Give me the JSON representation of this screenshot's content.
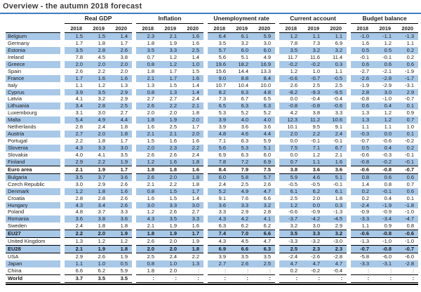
{
  "title": "Overview - the autumn 2018 forecast",
  "accent": {
    "title_rule_blue": "#3f7cc0",
    "row_highlight_blue": "#a8c8e8"
  },
  "table": {
    "years": [
      "2018",
      "2019",
      "2020"
    ],
    "column_groups": [
      "Real GDP",
      "Inflation",
      "Unemployment rate",
      "Current account",
      "Budget balance"
    ],
    "rows": [
      {
        "name": "Belgium",
        "highlight": true,
        "aggregate": false,
        "values": [
          "1.5",
          "1.5",
          "1.4",
          "2.3",
          "2.1",
          "1.6",
          "6.4",
          "6.1",
          "5.9",
          "1.2",
          "1.1",
          "1.1",
          "-1.0",
          "-1.1",
          "-1.3"
        ]
      },
      {
        "name": "Germany",
        "highlight": false,
        "aggregate": false,
        "values": [
          "1.7",
          "1.8",
          "1.7",
          "1.8",
          "1.9",
          "1.6",
          "3.5",
          "3.2",
          "3.0",
          "7.8",
          "7.3",
          "6.9",
          "1.6",
          "1.2",
          "1.1"
        ]
      },
      {
        "name": "Estonia",
        "highlight": true,
        "aggregate": false,
        "values": [
          "3.5",
          "2.8",
          "2.6",
          "3.5",
          "3.3",
          "2.5",
          "5.7",
          "6.0",
          "6.0",
          "3.5",
          "3.2",
          "3.2",
          "0.5",
          "0.5",
          "0.2"
        ]
      },
      {
        "name": "Ireland",
        "highlight": false,
        "aggregate": false,
        "values": [
          "7.8",
          "4.5",
          "3.8",
          "0.7",
          "1.2",
          "1.4",
          "5.6",
          "5.1",
          "4.9",
          "11.7",
          "11.6",
          "11.4",
          "-0.1",
          "-0.1",
          "0.2"
        ]
      },
      {
        "name": "Greece",
        "highlight": true,
        "aggregate": false,
        "values": [
          "2.0",
          "2.0",
          "2.0",
          "0.8",
          "1.2",
          "1.0",
          "19.6",
          "18.2",
          "16.9",
          "-0.2",
          "-0.2",
          "0.3",
          "0.6",
          "0.6",
          "0.6"
        ]
      },
      {
        "name": "Spain",
        "highlight": false,
        "aggregate": false,
        "values": [
          "2.6",
          "2.2",
          "2.0",
          "1.8",
          "1.7",
          "1.5",
          "15.6",
          "14.4",
          "13.3",
          "1.2",
          "1.0",
          "1.1",
          "-2.7",
          "-2.1",
          "-1.9"
        ]
      },
      {
        "name": "France",
        "highlight": true,
        "aggregate": false,
        "values": [
          "1.7",
          "1.6",
          "1.6",
          "2.1",
          "1.7",
          "1.6",
          "9.0",
          "8.8",
          "8.4",
          "-0.6",
          "-0.7",
          "-0.5",
          "-2.6",
          "-2.8",
          "-1.7"
        ]
      },
      {
        "name": "Italy",
        "highlight": false,
        "aggregate": false,
        "values": [
          "1.1",
          "1.2",
          "1.3",
          "1.3",
          "1.5",
          "1.4",
          "10.7",
          "10.4",
          "10.0",
          "2.6",
          "2.5",
          "2.5",
          "-1.9",
          "-2.9",
          "-3.1"
        ]
      },
      {
        "name": "Cyprus",
        "highlight": true,
        "aggregate": false,
        "values": [
          "3.9",
          "3.5",
          "2.9",
          "0.8",
          "1.3",
          "1.4",
          "8.2",
          "6.3",
          "4.8",
          "-8.2",
          "-9.3",
          "-9.5",
          "2.8",
          "3.0",
          "2.9"
        ]
      },
      {
        "name": "Latvia",
        "highlight": false,
        "aggregate": false,
        "values": [
          "4.1",
          "3.2",
          "2.9",
          "2.7",
          "2.7",
          "2.4",
          "7.3",
          "6.7",
          "6.5",
          "0.0",
          "-0.4",
          "-0.4",
          "-0.8",
          "-1.0",
          "-0.7"
        ]
      },
      {
        "name": "Lithuania",
        "highlight": true,
        "aggregate": false,
        "values": [
          "3.4",
          "2.8",
          "2.5",
          "2.6",
          "2.2",
          "2.1",
          "6.5",
          "6.3",
          "6.3",
          "-0.8",
          "-0.8",
          "-0.6",
          "0.6",
          "0.4",
          "0.1"
        ]
      },
      {
        "name": "Luxembourg",
        "highlight": false,
        "aggregate": false,
        "values": [
          "3.1",
          "3.0",
          "2.7",
          "2.0",
          "2.0",
          "1.8",
          "5.3",
          "5.2",
          "5.2",
          "4.2",
          "3.8",
          "3.3",
          "1.3",
          "1.2",
          "0.9"
        ]
      },
      {
        "name": "Malta",
        "highlight": true,
        "aggregate": false,
        "values": [
          "5.4",
          "4.9",
          "4.4",
          "1.8",
          "1.9",
          "2.0",
          "3.9",
          "4.0",
          "4.0",
          "12.3",
          "11.2",
          "10.6",
          "1.3",
          "1.2",
          "0.7"
        ]
      },
      {
        "name": "Netherlands",
        "highlight": false,
        "aggregate": false,
        "values": [
          "2.8",
          "2.4",
          "1.8",
          "1.6",
          "2.5",
          "1.7",
          "3.9",
          "3.6",
          "3.6",
          "10.1",
          "9.5",
          "9.1",
          "1.1",
          "1.1",
          "1.0"
        ]
      },
      {
        "name": "Austria",
        "highlight": true,
        "aggregate": false,
        "values": [
          "2.7",
          "2.0",
          "1.8",
          "2.1",
          "2.1",
          "2.0",
          "4.8",
          "4.6",
          "4.4",
          "2.0",
          "2.2",
          "2.4",
          "-0.3",
          "0.0",
          "0.1"
        ]
      },
      {
        "name": "Portugal",
        "highlight": false,
        "aggregate": false,
        "values": [
          "2.2",
          "1.8",
          "1.7",
          "1.5",
          "1.6",
          "1.6",
          "7.1",
          "6.3",
          "5.9",
          "0.0",
          "-0.1",
          "-0.1",
          "-0.7",
          "-0.6",
          "-0.2"
        ]
      },
      {
        "name": "Slovenia",
        "highlight": true,
        "aggregate": false,
        "values": [
          "4.3",
          "3.3",
          "3.0",
          "2.0",
          "2.3",
          "2.2",
          "5.6",
          "5.3",
          "5.1",
          "7.5",
          "7.1",
          "6.7",
          "0.5",
          "0.4",
          "0.2"
        ]
      },
      {
        "name": "Slovakia",
        "highlight": false,
        "aggregate": false,
        "values": [
          "4.0",
          "4.1",
          "3.5",
          "2.6",
          "2.6",
          "2.4",
          "6.9",
          "6.3",
          "6.0",
          "0.0",
          "1.2",
          "2.1",
          "-0.6",
          "-0.3",
          "-0.1"
        ]
      },
      {
        "name": "Finland",
        "highlight": true,
        "aggregate": false,
        "values": [
          "2.9",
          "2.2",
          "1.9",
          "1.2",
          "1.6",
          "1.8",
          "7.8",
          "7.2",
          "6.9",
          "0.7",
          "1.1",
          "1.6",
          "-0.8",
          "-0.2",
          "-0.1"
        ]
      },
      {
        "name": "Euro area",
        "highlight": false,
        "aggregate": true,
        "values": [
          "2.1",
          "1.9",
          "1.7",
          "1.8",
          "1.8",
          "1.6",
          "8.4",
          "7.9",
          "7.5",
          "3.8",
          "3.6",
          "3.6",
          "-0.6",
          "-0.8",
          "-0.7"
        ]
      },
      {
        "name": "Bulgaria",
        "highlight": true,
        "aggregate": false,
        "values": [
          "3.5",
          "3.7",
          "3.6",
          "2.6",
          "2.0",
          "1.8",
          "6.0",
          "5.8",
          "5.7",
          "5.9",
          "4.6",
          "5.1",
          "0.8",
          "0.6",
          "0.6"
        ]
      },
      {
        "name": "Czech Republic",
        "highlight": false,
        "aggregate": false,
        "values": [
          "3.0",
          "2.9",
          "2.6",
          "2.1",
          "2.2",
          "1.8",
          "2.4",
          "2.5",
          "2.6",
          "-0.5",
          "-0.5",
          "-0.1",
          "1.4",
          "0.8",
          "0.7"
        ]
      },
      {
        "name": "Denmark",
        "highlight": true,
        "aggregate": false,
        "values": [
          "1.2",
          "1.8",
          "1.6",
          "0.8",
          "1.5",
          "1.7",
          "5.2",
          "4.9",
          "4.7",
          "6.1",
          "6.2",
          "6.1",
          "0.2",
          "-0.1",
          "0.6"
        ]
      },
      {
        "name": "Croatia",
        "highlight": false,
        "aggregate": false,
        "values": [
          "2.8",
          "2.8",
          "2.6",
          "1.6",
          "1.5",
          "1.4",
          "9.1",
          "7.6",
          "6.6",
          "2.5",
          "2.0",
          "1.8",
          "0.2",
          "0.4",
          "0.1"
        ]
      },
      {
        "name": "Hungary",
        "highlight": true,
        "aggregate": false,
        "values": [
          "4.3",
          "3.4",
          "2.6",
          "3.0",
          "3.3",
          "3.0",
          "3.6",
          "3.3",
          "3.2",
          "1.2",
          "0.0",
          "0.3",
          "-2.4",
          "-1.9",
          "-1.8"
        ]
      },
      {
        "name": "Poland",
        "highlight": false,
        "aggregate": false,
        "values": [
          "4.8",
          "3.7",
          "3.3",
          "1.2",
          "2.6",
          "2.7",
          "3.3",
          "2.9",
          "2.8",
          "-0.6",
          "-0.9",
          "-1.3",
          "-0.9",
          "-0.9",
          "-1.0"
        ]
      },
      {
        "name": "Romania",
        "highlight": true,
        "aggregate": false,
        "values": [
          "3.6",
          "3.8",
          "3.6",
          "4.3",
          "3.5",
          "3.3",
          "4.3",
          "4.2",
          "4.1",
          "-3.7",
          "-4.2",
          "-4.5",
          "-3.3",
          "-3.4",
          "-4.7"
        ]
      },
      {
        "name": "Sweden",
        "highlight": false,
        "aggregate": false,
        "values": [
          "2.4",
          "1.8",
          "1.8",
          "2.1",
          "1.9",
          "1.6",
          "6.3",
          "6.2",
          "6.2",
          "3.2",
          "3.0",
          "2.9",
          "1.1",
          "0.9",
          "0.8"
        ]
      },
      {
        "name": "EU27",
        "highlight": true,
        "aggregate": true,
        "values": [
          "2.2",
          "2.0",
          "1.9",
          "1.8",
          "1.9",
          "1.7",
          "7.4",
          "7.0",
          "6.6",
          "3.5",
          "3.3",
          "3.2",
          "-0.6",
          "-0.8",
          "-0.6"
        ]
      },
      {
        "name": "United Kingdom",
        "highlight": false,
        "aggregate": false,
        "values": [
          "1.3",
          "1.2",
          "1.2",
          "2.6",
          "2.0",
          "1.9",
          "4.3",
          "4.5",
          "4.7",
          "-3.3",
          "-3.2",
          "-3.0",
          "-1.3",
          "-1.0",
          "-1.0"
        ]
      },
      {
        "name": "EU28",
        "highlight": true,
        "aggregate": true,
        "values": [
          "2.1",
          "1.9",
          "1.8",
          "2.0",
          "2.0",
          "1.8",
          "6.9",
          "6.6",
          "6.3",
          "2.5",
          "2.3",
          "2.3",
          "-0.7",
          "-0.8",
          "-0.7"
        ]
      },
      {
        "name": "USA",
        "highlight": false,
        "aggregate": false,
        "values": [
          "2.9",
          "2.6",
          "1.9",
          "2.5",
          "2.4",
          "2.2",
          "3.9",
          "3.5",
          "3.5",
          "-2.4",
          "-2.6",
          "-2.8",
          "-5.8",
          "-6.0",
          "-6.0"
        ]
      },
      {
        "name": "Japan",
        "highlight": true,
        "aggregate": false,
        "values": [
          "1.1",
          "1.0",
          "0.5",
          "0.8",
          "1.0",
          "1.3",
          "2.7",
          "2.6",
          "2.5",
          "4.7",
          "4.7",
          "4.7",
          "-3.3",
          "-3.1",
          "-2.8"
        ]
      },
      {
        "name": "China",
        "highlight": false,
        "aggregate": false,
        "values": [
          "6.6",
          "6.2",
          "5.9",
          "1.8",
          "2.0",
          ":",
          ":",
          ":",
          ":",
          "0.2",
          "-0.2",
          "-0.4",
          ":",
          ":",
          ":"
        ]
      },
      {
        "name": "World",
        "highlight": false,
        "aggregate": true,
        "values": [
          "3.7",
          "3.5",
          "3.5",
          ":",
          ":",
          ":",
          ":",
          ":",
          ":",
          ":",
          ":",
          ":",
          ":",
          ":",
          ":"
        ]
      }
    ]
  }
}
